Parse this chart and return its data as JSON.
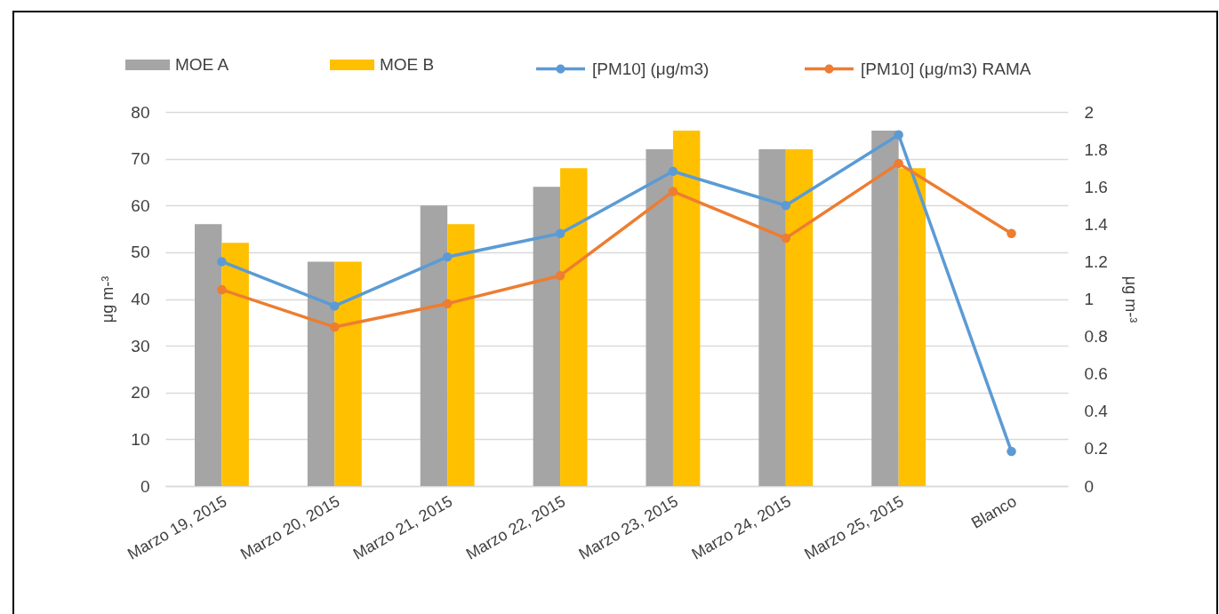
{
  "chart_data": {
    "type": "bar",
    "categories": [
      "Marzo 19, 2015",
      "Marzo 20, 2015",
      "Marzo 21, 2015",
      "Marzo 22, 2015",
      "Marzo 23, 2015",
      "Marzo 24, 2015",
      "Marzo 25, 2015",
      "Blanco"
    ],
    "series": [
      {
        "name": "MOE A",
        "color": "#a5a5a5",
        "axis": "y2",
        "values": [
          1.4,
          1.2,
          1.5,
          1.6,
          1.8,
          1.8,
          1.9,
          null
        ]
      },
      {
        "name": "MOE B",
        "color": "#ffc000",
        "axis": "y2",
        "values": [
          1.3,
          1.2,
          1.4,
          1.7,
          1.9,
          1.8,
          1.7,
          null
        ]
      },
      {
        "name": "[PM10] (μg/m3)",
        "type": "line",
        "color": "#5b9bd5",
        "values": [
          48,
          38.5,
          49,
          54,
          67.3,
          60,
          75.1,
          7.4
        ]
      },
      {
        "name": "[PM10] (μg/m3) RAMA",
        "type": "line",
        "color": "#ed7d31",
        "values": [
          42,
          34,
          39,
          45,
          63,
          53,
          69,
          54
        ]
      }
    ],
    "ylabel": "μg m-³",
    "y2label": "μg m-³",
    "ylim": [
      0,
      80
    ],
    "yticks": [
      0,
      10,
      20,
      30,
      40,
      50,
      60,
      70,
      80
    ],
    "y2lim": [
      0,
      2
    ],
    "y2ticks": [
      0,
      0.2,
      0.4,
      0.6,
      0.8,
      1,
      1.2,
      1.4,
      1.6,
      1.8,
      2
    ],
    "grid": "y",
    "legend": "top",
    "marker": "circle"
  }
}
